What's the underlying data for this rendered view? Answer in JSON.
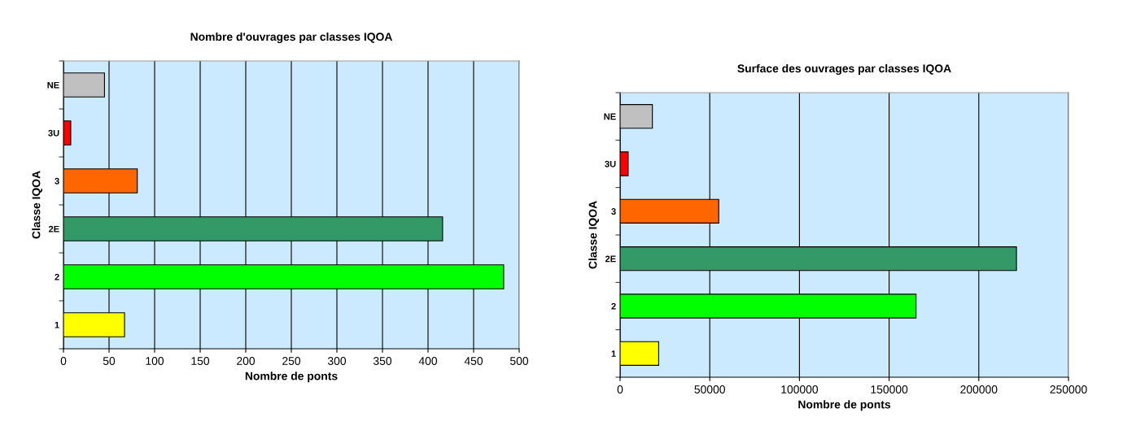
{
  "chart_data": [
    {
      "type": "bar",
      "orientation": "horizontal",
      "title": "Nombre d'ouvrages par classes IQOA",
      "xlabel": "Nombre de ponts",
      "ylabel": "Classe IQOA",
      "categories": [
        "NE",
        "3U",
        "3",
        "2E",
        "2",
        "1"
      ],
      "values": [
        45,
        8,
        81,
        416,
        483,
        67
      ],
      "colors": [
        "#c0c0c0",
        "#ff0000",
        "#ff6600",
        "#339966",
        "#00ff00",
        "#ffff00"
      ],
      "xlim": [
        0,
        500
      ],
      "xticks": [
        0,
        50,
        100,
        150,
        200,
        250,
        300,
        350,
        400,
        450,
        500
      ],
      "grid": "x"
    },
    {
      "type": "bar",
      "orientation": "horizontal",
      "title": "Surface des ouvrages par classes IQOA",
      "xlabel": "Nombre de ponts",
      "ylabel": "Classe IQOA",
      "categories": [
        "NE",
        "3U",
        "3",
        "2E",
        "2",
        "1"
      ],
      "values": [
        18000,
        4500,
        55000,
        221000,
        165000,
        21500
      ],
      "colors": [
        "#c0c0c0",
        "#ff0000",
        "#ff6600",
        "#339966",
        "#00ff00",
        "#ffff00"
      ],
      "xlim": [
        0,
        250000
      ],
      "xticks": [
        0,
        50000,
        100000,
        150000,
        200000,
        250000
      ],
      "grid": "x"
    }
  ]
}
